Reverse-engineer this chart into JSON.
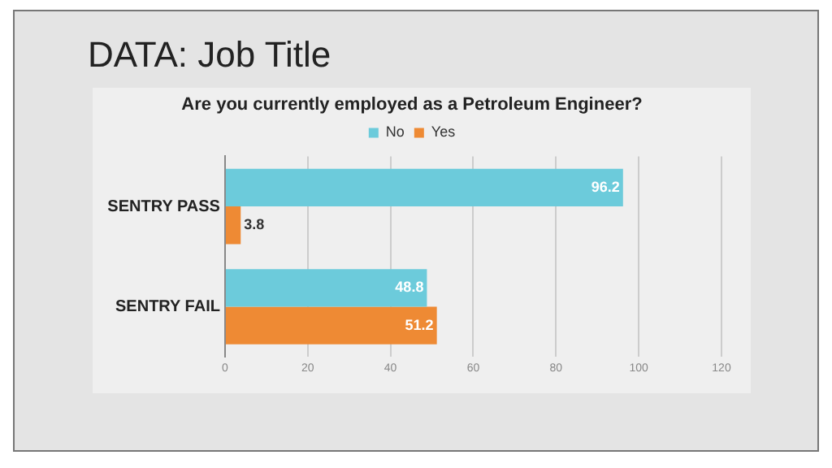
{
  "chart_data": {
    "type": "bar",
    "orientation": "horizontal",
    "title": "DATA: Job Title",
    "subtitle": "Are you currently employed as a Petroleum Engineer?",
    "categories": [
      "SENTRY PASS",
      "SENTRY FAIL"
    ],
    "series": [
      {
        "name": "No",
        "color": "#6ccbdb",
        "values": [
          96.2,
          48.8
        ]
      },
      {
        "name": "Yes",
        "color": "#ee8a34",
        "values": [
          3.8,
          51.2
        ]
      }
    ],
    "xlim": [
      0,
      120
    ],
    "xticks": [
      0,
      20,
      40,
      60,
      80,
      100,
      120
    ],
    "grid": "x",
    "legend": "top",
    "data_labels": true
  }
}
